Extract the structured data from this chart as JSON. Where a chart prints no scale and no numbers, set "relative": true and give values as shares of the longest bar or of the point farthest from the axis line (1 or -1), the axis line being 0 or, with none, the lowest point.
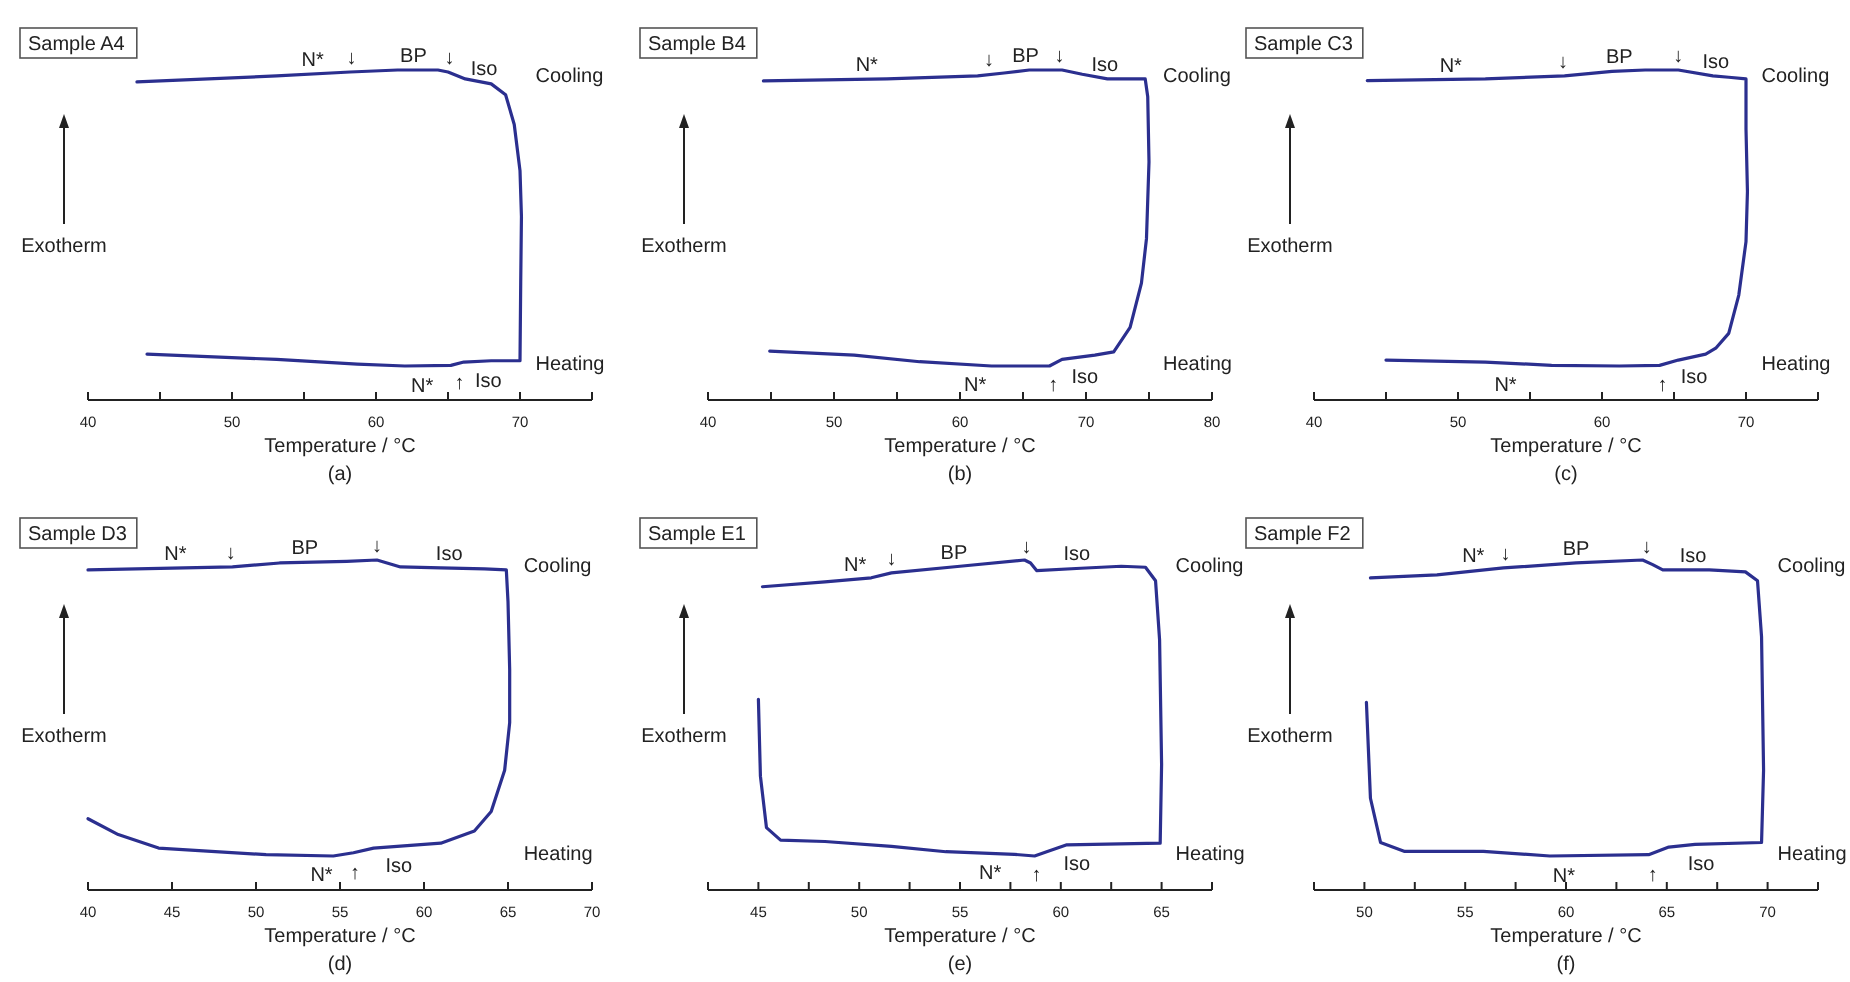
{
  "chart_data": [
    {
      "type": "line",
      "title": "Sample A4",
      "subtitle": "(a)",
      "xlabel": "Temperature / °C",
      "ylabel": "Exotherm",
      "relative": true,
      "color": "#2b2f8f",
      "xlim": [
        40,
        75
      ],
      "xticks": [
        40,
        {
          "value": 45,
          "label": null
        },
        50,
        {
          "value": 55,
          "label": null
        },
        60,
        {
          "value": 65,
          "label": null
        },
        70,
        {
          "value": 75,
          "label": null
        }
      ],
      "x": [
        43.4,
        53.1,
        58.2,
        61.5,
        64.3,
        65.0,
        66.2,
        68.0,
        69.0,
        69.6,
        70.0,
        70.1,
        70.05,
        70.0,
        68.0,
        66.1,
        65.2,
        62.0,
        58.7,
        53.1,
        44.1
      ],
      "values": [
        0.964,
        0.982,
        0.994,
        1,
        1,
        0.994,
        0.973,
        0.958,
        0.925,
        0.835,
        0.695,
        0.556,
        0.358,
        0.119,
        0.119,
        0.115,
        0.105,
        0.103,
        0.109,
        0.123,
        0.139
      ],
      "annotations": [
        "Cooling",
        "Heating",
        {
          "text": "N*",
          "x": 55.6,
          "y": 0.987
        },
        {
          "text": "↓",
          "x": 58.3,
          "y": 0.994
        },
        {
          "text": "BP",
          "x": 62.6,
          "y": 1
        },
        {
          "text": "↓",
          "x": 65.1,
          "y": 0.994
        },
        {
          "text": "Iso",
          "x": 67.5,
          "y": 0.96
        },
        {
          "text": "N*",
          "x": 63.2,
          "y": 0.103
        },
        {
          "text": "↑",
          "x": 65.8,
          "y": 0.112
        },
        {
          "text": "Iso",
          "x": 67.8,
          "y": 0.119
        }
      ]
    },
    {
      "type": "line",
      "title": "Sample B4",
      "subtitle": "(b)",
      "xlabel": "Temperature / °C",
      "ylabel": "Exotherm",
      "relative": true,
      "color": "#2b2f8f",
      "xlim": [
        40,
        80
      ],
      "xticks": [
        40,
        {
          "value": 45,
          "label": null
        },
        50,
        {
          "value": 55,
          "label": null
        },
        60,
        {
          "value": 65,
          "label": null
        },
        70,
        {
          "value": 75,
          "label": null
        },
        80
      ],
      "x": [
        44.4,
        54.2,
        61.4,
        63.5,
        65.5,
        68.1,
        69.7,
        71.7,
        73.8,
        74.7,
        74.9,
        75.0,
        74.8,
        74.4,
        73.5,
        72.2,
        70.7,
        68.1,
        67.1,
        62.5,
        56.8,
        51.6,
        44.9
      ],
      "values": [
        0.967,
        0.973,
        0.982,
        0.991,
        1,
        1,
        0.987,
        0.973,
        0.973,
        0.973,
        0.919,
        0.722,
        0.489,
        0.354,
        0.22,
        0.146,
        0.136,
        0.123,
        0.103,
        0.103,
        0.116,
        0.136,
        0.148
      ],
      "annotations": [
        "Cooling",
        "Heating",
        {
          "text": "N*",
          "x": 52.6,
          "y": 0.973
        },
        {
          "text": "↓",
          "x": 62.3,
          "y": 0.987
        },
        {
          "text": "BP",
          "x": 65.2,
          "y": 1
        },
        {
          "text": "↓",
          "x": 67.9,
          "y": 1
        },
        {
          "text": "Iso",
          "x": 71.5,
          "y": 0.973
        },
        {
          "text": "N*",
          "x": 61.2,
          "y": 0.105
        },
        {
          "text": "↑",
          "x": 67.4,
          "y": 0.107
        },
        {
          "text": "Iso",
          "x": 69.9,
          "y": 0.13
        }
      ]
    },
    {
      "type": "line",
      "title": "Sample C3",
      "subtitle": "(c)",
      "xlabel": "Temperature / °C",
      "ylabel": "Exotherm",
      "relative": true,
      "color": "#2b2f8f",
      "xlim": [
        40,
        75
      ],
      "xticks": [
        40,
        {
          "value": 45,
          "label": null
        },
        50,
        {
          "value": 55,
          "label": null
        },
        60,
        {
          "value": 65,
          "label": null
        },
        70,
        {
          "value": 75,
          "label": null
        }
      ],
      "x": [
        43.7,
        51.9,
        57.4,
        60.7,
        63.0,
        65.3,
        67.7,
        68.8,
        70.0,
        70.0,
        70.1,
        70.0,
        69.5,
        68.8,
        67.9,
        67.2,
        65.3,
        64.0,
        61.2,
        56.5,
        51.9,
        45.0
      ],
      "values": [
        0.968,
        0.973,
        0.982,
        0.996,
        1,
        1,
        0.982,
        0.978,
        0.973,
        0.821,
        0.632,
        0.48,
        0.318,
        0.202,
        0.157,
        0.139,
        0.121,
        0.105,
        0.103,
        0.105,
        0.115,
        0.121
      ],
      "annotations": [
        "Cooling",
        "Heating",
        {
          "text": "N*",
          "x": 49.5,
          "y": 0.971
        },
        {
          "text": "↓",
          "x": 57.3,
          "y": 0.982
        },
        {
          "text": "BP",
          "x": 61.2,
          "y": 0.998
        },
        {
          "text": "↓",
          "x": 65.3,
          "y": 1
        },
        {
          "text": "Iso",
          "x": 67.9,
          "y": 0.982
        },
        {
          "text": "N*",
          "x": 53.3,
          "y": 0.107
        },
        {
          "text": "↑",
          "x": 64.2,
          "y": 0.105
        },
        {
          "text": "Iso",
          "x": 66.4,
          "y": 0.13
        }
      ]
    },
    {
      "type": "line",
      "title": "Sample D3",
      "subtitle": "(d)",
      "xlabel": "Temperature / °C",
      "ylabel": "Exotherm",
      "relative": true,
      "color": "#2b2f8f",
      "xlim": [
        40,
        70
      ],
      "xticks": [
        40,
        45,
        50,
        55,
        60,
        65,
        70
      ],
      "x": [
        40.0,
        48.6,
        51.4,
        55.4,
        57.2,
        58.6,
        61.0,
        63.6,
        64.9,
        65.0,
        65.1,
        65.1,
        64.8,
        64.0,
        63.0,
        61.0,
        57.0,
        55.8,
        54.6,
        50.6,
        44.2,
        41.8,
        40.0
      ],
      "values": [
        0.97,
        0.979,
        0.991,
        0.996,
        1,
        0.979,
        0.976,
        0.973,
        0.97,
        0.874,
        0.668,
        0.507,
        0.363,
        0.238,
        0.179,
        0.142,
        0.127,
        0.113,
        0.103,
        0.107,
        0.127,
        0.168,
        0.216
      ],
      "annotations": [
        "Cooling",
        "Heating",
        {
          "text": "N*",
          "x": 45.2,
          "y": 0.975
        },
        {
          "text": "↓",
          "x": 48.5,
          "y": 0.979
        },
        {
          "text": "BP",
          "x": 52.9,
          "y": 0.993
        },
        {
          "text": "↓",
          "x": 57.2,
          "y": 1
        },
        {
          "text": "Iso",
          "x": 61.5,
          "y": 0.976
        },
        {
          "text": "N*",
          "x": 53.9,
          "y": 0.105
        },
        {
          "text": "↑",
          "x": 55.9,
          "y": 0.113
        },
        {
          "text": "Iso",
          "x": 58.5,
          "y": 0.134
        }
      ]
    },
    {
      "type": "line",
      "title": "Sample E1",
      "subtitle": "(e)",
      "xlabel": "Temperature / °C",
      "ylabel": "Exotherm",
      "relative": true,
      "color": "#2b2f8f",
      "xlim": [
        42.5,
        67.5
      ],
      "xticks": [
        {
          "value": 42.5,
          "label": null
        },
        45,
        {
          "value": 47.5,
          "label": null
        },
        50,
        {
          "value": 52.5,
          "label": null
        },
        55,
        {
          "value": 57.5,
          "label": null
        },
        60,
        {
          "value": 62.5,
          "label": null
        },
        65,
        {
          "value": 67.5,
          "label": null
        }
      ],
      "x": [
        45.2,
        48.3,
        50.6,
        51.6,
        55.0,
        58.2,
        58.5,
        58.8,
        61.0,
        63.0,
        64.2,
        64.7,
        64.9,
        65.0,
        64.93,
        60.3,
        59.3,
        58.7,
        57.7,
        54.3,
        51.6,
        48.3,
        46.1,
        45.4,
        45.1,
        45.0
      ],
      "values": [
        0.919,
        0.934,
        0.946,
        0.961,
        0.981,
        1,
        0.991,
        0.968,
        0.975,
        0.981,
        0.978,
        0.937,
        0.758,
        0.381,
        0.142,
        0.137,
        0.116,
        0.103,
        0.108,
        0.116,
        0.132,
        0.147,
        0.151,
        0.189,
        0.345,
        0.578
      ],
      "annotations": [
        "Cooling",
        "Heating",
        {
          "text": "N*",
          "x": 49.8,
          "y": 0.942
        },
        {
          "text": "↓",
          "x": 51.6,
          "y": 0.961
        },
        {
          "text": "BP",
          "x": 54.7,
          "y": 0.979
        },
        {
          "text": "↓",
          "x": 58.3,
          "y": 0.996
        },
        {
          "text": "Iso",
          "x": 60.8,
          "y": 0.975
        },
        {
          "text": "N*",
          "x": 56.5,
          "y": 0.112
        },
        {
          "text": "↑",
          "x": 58.8,
          "y": 0.105
        },
        {
          "text": "Iso",
          "x": 60.8,
          "y": 0.139
        }
      ]
    },
    {
      "type": "line",
      "title": "Sample F2",
      "subtitle": "(f)",
      "xlabel": "Temperature / °C",
      "ylabel": "Exotherm",
      "relative": true,
      "color": "#2b2f8f",
      "xlim": [
        47.5,
        72.5
      ],
      "xticks": [
        {
          "value": 47.5,
          "label": null
        },
        50,
        {
          "value": 52.5,
          "label": null
        },
        55,
        {
          "value": 57.5,
          "label": null
        },
        60,
        {
          "value": 62.5,
          "label": null
        },
        65,
        {
          "value": 67.5,
          "label": null
        },
        70,
        {
          "value": 72.5,
          "label": null
        }
      ],
      "x": [
        50.3,
        53.6,
        56.9,
        60.5,
        63.8,
        64.3,
        64.8,
        67.1,
        68.9,
        69.5,
        69.7,
        69.8,
        69.7,
        66.4,
        65.1,
        64.1,
        59.2,
        55.9,
        52.0,
        50.8,
        50.3,
        50.1
      ],
      "values": [
        0.946,
        0.955,
        0.976,
        0.991,
        1,
        0.986,
        0.97,
        0.97,
        0.964,
        0.937,
        0.767,
        0.363,
        0.144,
        0.138,
        0.13,
        0.107,
        0.103,
        0.117,
        0.117,
        0.144,
        0.278,
        0.569
      ],
      "annotations": [
        "Cooling",
        "Heating",
        {
          "text": "N*",
          "x": 55.4,
          "y": 0.969
        },
        {
          "text": "↓",
          "x": 57.0,
          "y": 0.976
        },
        {
          "text": "BP",
          "x": 60.5,
          "y": 0.991
        },
        {
          "text": "↓",
          "x": 64.0,
          "y": 0.996
        },
        {
          "text": "Iso",
          "x": 66.3,
          "y": 0.97
        },
        {
          "text": "N*",
          "x": 59.9,
          "y": 0.103
        },
        {
          "text": "↑",
          "x": 64.3,
          "y": 0.106
        },
        {
          "text": "Iso",
          "x": 66.7,
          "y": 0.139
        }
      ]
    }
  ]
}
